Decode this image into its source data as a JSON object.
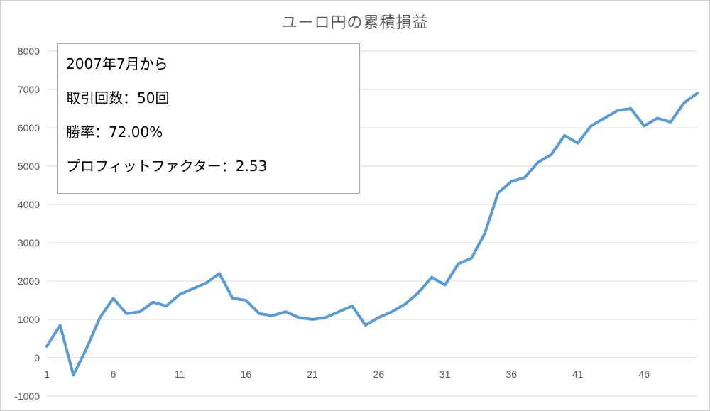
{
  "chart_data": {
    "type": "line",
    "title": "ユーロ円の累積損益",
    "xlabel": "",
    "ylabel": "",
    "ylim": [
      -1000,
      8000
    ],
    "yticks": [
      8000,
      7000,
      6000,
      5000,
      4000,
      3000,
      2000,
      1000,
      0,
      -1000
    ],
    "xticks": [
      1,
      6,
      11,
      16,
      21,
      26,
      31,
      36,
      41,
      46
    ],
    "grid": true,
    "legend": "none",
    "line_color": "#5b9bd5",
    "x": [
      1,
      2,
      3,
      4,
      5,
      6,
      7,
      8,
      9,
      10,
      11,
      12,
      13,
      14,
      15,
      16,
      17,
      18,
      19,
      20,
      21,
      22,
      23,
      24,
      25,
      26,
      27,
      28,
      29,
      30,
      31,
      32,
      33,
      34,
      35,
      36,
      37,
      38,
      39,
      40,
      41,
      42,
      43,
      44,
      45,
      46,
      47,
      48,
      49,
      50
    ],
    "series": [
      {
        "values": [
          300,
          850,
          -450,
          250,
          1050,
          1550,
          1150,
          1200,
          1450,
          1350,
          1650,
          1800,
          1950,
          2200,
          1550,
          1500,
          1150,
          1100,
          1200,
          1050,
          1000,
          1050,
          1200,
          1350,
          850,
          1050,
          1200,
          1400,
          1700,
          2100,
          1900,
          2450,
          2600,
          3250,
          4300,
          4600,
          4700,
          5100,
          5300,
          5800,
          5600,
          6050,
          6250,
          6450,
          6500,
          6050,
          6250,
          6150,
          6650,
          6900
        ]
      }
    ]
  },
  "info": {
    "line1": "2007年7月から",
    "line2": "取引回数：50回",
    "line3": "勝率：72.00%",
    "line4": "プロフィットファクター：2.53"
  }
}
